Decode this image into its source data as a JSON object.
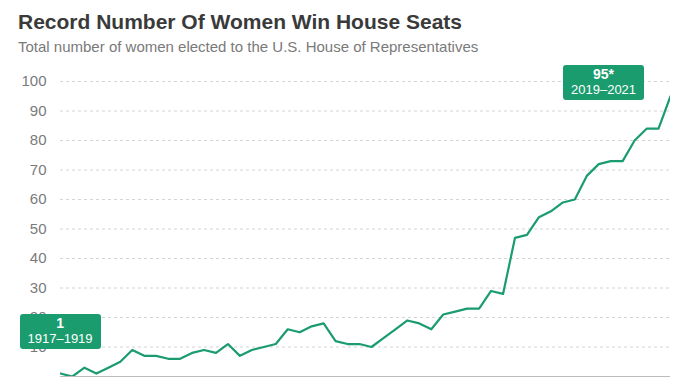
{
  "chart_data": {
    "type": "line",
    "title": "Record Number Of Women Win House Seats",
    "subtitle": "Total number of women elected to the U.S. House of Representatives",
    "categories": [
      "1917–1919",
      null,
      null,
      null,
      null,
      null,
      null,
      null,
      null,
      null,
      null,
      null,
      null,
      null,
      null,
      null,
      null,
      null,
      null,
      null,
      null,
      null,
      null,
      null,
      null,
      null,
      null,
      null,
      null,
      null,
      null,
      null,
      null,
      null,
      null,
      null,
      null,
      null,
      null,
      null,
      null,
      null,
      null,
      null,
      null,
      null,
      null,
      null,
      null,
      null,
      null,
      "2019–2021"
    ],
    "values": [
      1,
      0,
      3,
      1,
      3,
      5,
      9,
      7,
      7,
      6,
      6,
      8,
      9,
      8,
      11,
      7,
      9,
      10,
      11,
      16,
      15,
      17,
      18,
      12,
      11,
      11,
      10,
      13,
      16,
      19,
      18,
      16,
      21,
      22,
      23,
      23,
      29,
      28,
      47,
      48,
      54,
      56,
      59,
      60,
      68,
      72,
      73,
      73,
      80,
      84,
      84,
      95
    ],
    "color": "#1a9c6e",
    "ylim": [
      0,
      100
    ],
    "yticks": [
      10,
      20,
      30,
      40,
      50,
      60,
      70,
      80,
      90,
      100
    ],
    "grid": true,
    "tick_labels": "y",
    "annotations": [
      {
        "x": "1917–1919",
        "y": 1,
        "label": "1"
      },
      {
        "x": "2019–2021",
        "y": 95,
        "label": "95*"
      }
    ]
  }
}
